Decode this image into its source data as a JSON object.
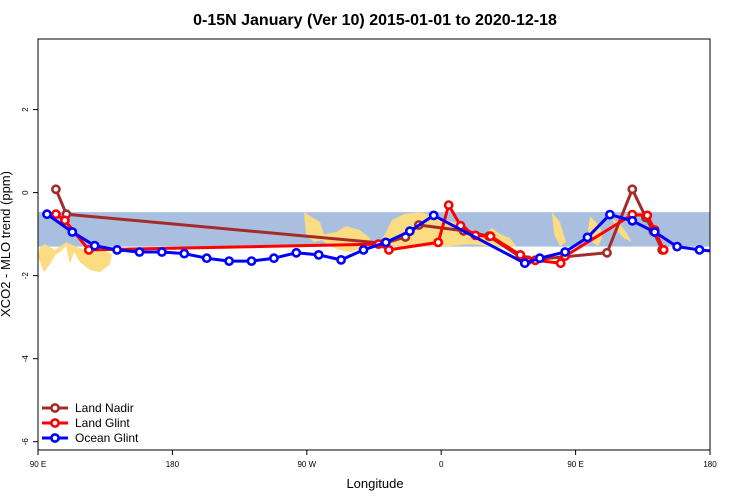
{
  "chart_data": {
    "type": "line",
    "title": "0-15N January (Ver 10)   2015-01-01 to 2020-12-18",
    "xlabel": "Longitude",
    "ylabel": "XCO2 - MLO trend (ppm)",
    "xlim": [
      90,
      540
    ],
    "ylim": [
      -6.2,
      3.7
    ],
    "x_ticks": [
      {
        "value": 90,
        "label": "90 E"
      },
      {
        "value": 180,
        "label": "180"
      },
      {
        "value": 270,
        "label": "90 W"
      },
      {
        "value": 360,
        "label": "0"
      },
      {
        "value": 450,
        "label": "90 E"
      },
      {
        "value": 540,
        "label": "180"
      }
    ],
    "y_ticks": [
      {
        "value": -6,
        "label": "-6"
      },
      {
        "value": -4,
        "label": "-4"
      },
      {
        "value": -2,
        "label": "-2"
      },
      {
        "value": 0,
        "label": "0"
      },
      {
        "value": 2,
        "label": "2"
      }
    ],
    "grid": false,
    "legend_position": "bottom-left",
    "band": {
      "y_min": -1.3,
      "y_max": -0.47,
      "color": "#a9bfdf"
    },
    "land_color": "#fcdc82",
    "series": [
      {
        "name": "Land Nadir",
        "color": "#a52a2a",
        "points": [
          [
            102,
            0.08
          ],
          [
            109,
            -0.52
          ],
          [
            322,
            -1.22
          ],
          [
            336,
            -1.07
          ],
          [
            345,
            -0.78
          ],
          [
            375,
            -0.92
          ],
          [
            392,
            -1.05
          ],
          [
            413,
            -1.55
          ],
          [
            418,
            -1.63
          ],
          [
            471,
            -1.45
          ],
          [
            488,
            0.08
          ],
          [
            497,
            -0.6
          ],
          [
            502,
            -0.93
          ],
          [
            508,
            -1.38
          ]
        ]
      },
      {
        "name": "Land Glint",
        "color": "#ff0000",
        "points": [
          [
            102,
            -0.52
          ],
          [
            108,
            -0.67
          ],
          [
            124,
            -1.38
          ],
          [
            318,
            -1.24
          ],
          [
            325,
            -1.38
          ],
          [
            358,
            -1.2
          ],
          [
            365,
            -0.3
          ],
          [
            373,
            -0.8
          ],
          [
            383,
            -1.03
          ],
          [
            393,
            -1.05
          ],
          [
            413,
            -1.5
          ],
          [
            423,
            -1.63
          ],
          [
            440,
            -1.7
          ],
          [
            443,
            -1.53
          ],
          [
            488,
            -0.53
          ],
          [
            498,
            -0.55
          ],
          [
            503,
            -0.9
          ],
          [
            509,
            -1.38
          ]
        ]
      },
      {
        "name": "Ocean Glint",
        "color": "#0000ff",
        "points": [
          [
            96,
            -0.52
          ],
          [
            113,
            -0.95
          ],
          [
            128,
            -1.28
          ],
          [
            143,
            -1.38
          ],
          [
            158,
            -1.43
          ],
          [
            173,
            -1.43
          ],
          [
            188,
            -1.47
          ],
          [
            203,
            -1.58
          ],
          [
            218,
            -1.65
          ],
          [
            233,
            -1.65
          ],
          [
            248,
            -1.58
          ],
          [
            263,
            -1.45
          ],
          [
            278,
            -1.5
          ],
          [
            293,
            -1.62
          ],
          [
            308,
            -1.38
          ],
          [
            323,
            -1.2
          ],
          [
            339,
            -0.93
          ],
          [
            355,
            -0.55
          ],
          [
            416,
            -1.7
          ],
          [
            426,
            -1.58
          ],
          [
            443,
            -1.43
          ],
          [
            458,
            -1.08
          ],
          [
            473,
            -0.53
          ],
          [
            488,
            -0.68
          ],
          [
            503,
            -0.95
          ],
          [
            518,
            -1.3
          ],
          [
            533,
            -1.38
          ],
          [
            548,
            -1.43
          ],
          [
            563,
            -1.43
          ]
        ]
      }
    ]
  }
}
